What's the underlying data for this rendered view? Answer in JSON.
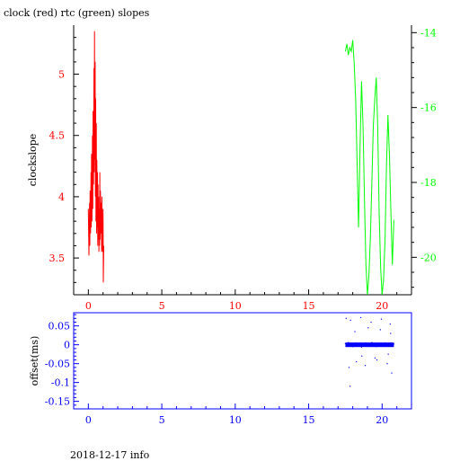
{
  "chart_data": [
    {
      "type": "line",
      "title": "clock (red) rtc (green) slopes",
      "ylabel": "clockslope",
      "x_ticks": [
        "0",
        "5",
        "10",
        "15",
        "20"
      ],
      "xlim": [
        -1,
        22
      ],
      "ylim": [
        3.2,
        5.4
      ],
      "y_ticks": [
        "3.5",
        "4",
        "4.5",
        "5"
      ],
      "y2lim": [
        -21,
        -13.8
      ],
      "y2_ticks": [
        "-14",
        "-16",
        "-18",
        "-20"
      ],
      "colors": {
        "clock": "#ff0000",
        "rtc": "#00ff00",
        "axes": "#000000"
      },
      "series": [
        {
          "color": "#ff0000",
          "axis": "left",
          "x": [
            0.0,
            0.04,
            0.08,
            0.1,
            0.12,
            0.15,
            0.18,
            0.2,
            0.22,
            0.25,
            0.28,
            0.3,
            0.32,
            0.35,
            0.38,
            0.4,
            0.42,
            0.44,
            0.46,
            0.48,
            0.5,
            0.52,
            0.54,
            0.56,
            0.58,
            0.6,
            0.62,
            0.64,
            0.66,
            0.68,
            0.7,
            0.72,
            0.74,
            0.76,
            0.78,
            0.8,
            0.82,
            0.85,
            0.88,
            0.9,
            0.92,
            0.95,
            0.98,
            1.0,
            1.02,
            1.05
          ],
          "y": [
            3.9,
            3.52,
            3.95,
            3.6,
            4.05,
            3.7,
            4.2,
            3.75,
            4.35,
            3.8,
            4.5,
            3.9,
            4.7,
            4.1,
            5.05,
            4.2,
            5.35,
            4.3,
            5.1,
            4.0,
            4.8,
            3.8,
            4.6,
            3.7,
            4.3,
            3.75,
            4.2,
            3.6,
            4.1,
            3.65,
            4.0,
            3.55,
            3.9,
            3.6,
            4.2,
            3.65,
            4.05,
            3.7,
            3.95,
            3.55,
            4.0,
            3.6,
            3.55,
            3.9,
            3.3,
            3.6
          ]
        },
        {
          "color": "#00ff00",
          "axis": "right",
          "x": [
            17.5,
            17.6,
            17.7,
            17.8,
            17.9,
            18.0,
            18.1,
            18.2,
            18.3,
            18.4,
            18.5,
            18.6,
            18.7,
            18.8,
            18.9,
            19.0,
            19.1,
            19.2,
            19.3,
            19.4,
            19.5,
            19.6,
            19.7,
            19.8,
            19.9,
            20.0,
            20.1,
            20.2,
            20.3,
            20.4,
            20.5,
            20.6,
            20.7,
            20.8
          ],
          "y": [
            -14.5,
            -14.3,
            -14.6,
            -14.4,
            -14.5,
            -14.2,
            -14.8,
            -15.8,
            -17.5,
            -19.2,
            -17.0,
            -15.3,
            -16.5,
            -18.5,
            -20.2,
            -21.0,
            -20.5,
            -19.5,
            -18.0,
            -16.5,
            -15.8,
            -15.2,
            -16.5,
            -18.8,
            -20.3,
            -21.0,
            -20.6,
            -19.5,
            -17.5,
            -16.2,
            -17.3,
            -18.8,
            -20.2,
            -19.0
          ]
        }
      ]
    },
    {
      "type": "scatter",
      "ylabel": "offset(ms)",
      "x_ticks": [
        "0",
        "5",
        "10",
        "15",
        "20"
      ],
      "xlim": [
        -1,
        22
      ],
      "ylim": [
        -0.17,
        0.085
      ],
      "y_ticks": [
        "0.05",
        "0",
        "-0.05",
        "-0.1",
        "-0.15"
      ],
      "colors": {
        "points": "#0000ff",
        "axes": "#0000ff"
      },
      "series": [
        {
          "color": "#0000ff",
          "x": [
            17.5,
            17.6,
            17.7,
            17.8,
            17.9,
            18.0,
            18.1,
            18.2,
            18.3,
            18.4,
            18.5,
            18.6,
            18.7,
            18.8,
            18.9,
            19.0,
            19.1,
            19.2,
            19.3,
            19.4,
            19.5,
            19.6,
            19.7,
            19.8,
            19.9,
            20.0,
            20.1,
            20.2,
            20.3,
            20.4,
            20.5,
            20.6,
            20.7,
            20.8,
            17.55,
            17.75,
            17.85,
            18.25,
            18.55,
            18.85,
            19.25,
            19.65,
            19.95,
            20.35,
            20.55,
            20.65,
            17.82,
            18.15,
            18.62,
            19.05,
            19.52,
            19.88,
            20.42,
            20.58
          ],
          "y": [
            0.003,
            -0.004,
            0.006,
            -0.002,
            0.004,
            -0.005,
            0.002,
            0.005,
            -0.003,
            0.001,
            0.004,
            -0.006,
            0.003,
            -0.002,
            0.005,
            -0.003,
            0.002,
            -0.004,
            0.006,
            -0.001,
            0.003,
            -0.005,
            0.002,
            0.004,
            -0.003,
            0.001,
            -0.004,
            0.005,
            -0.002,
            0.003,
            -0.001,
            0.004,
            -0.003,
            0.002,
            0.07,
            -0.06,
            0.065,
            -0.045,
            0.072,
            -0.055,
            0.06,
            -0.04,
            0.068,
            -0.05,
            0.055,
            -0.075,
            -0.11,
            0.035,
            -0.03,
            0.045,
            -0.035,
            0.04,
            -0.025,
            0.03
          ]
        }
      ]
    }
  ],
  "footer": "2018-12-17 info"
}
